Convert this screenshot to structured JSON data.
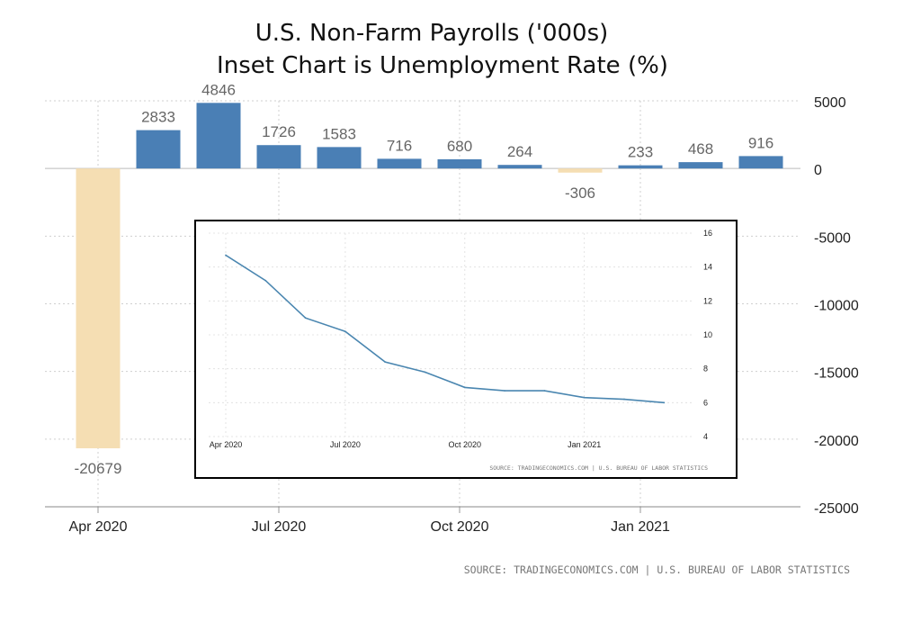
{
  "title": {
    "line1": "U.S. Non-Farm Payrolls ('000s)",
    "line2": "Inset Chart is Unemployment Rate (%)"
  },
  "source": "SOURCE: TRADINGECONOMICS.COM | U.S. BUREAU OF LABOR STATISTICS",
  "colors": {
    "positive": "#4a7fb5",
    "negative": "#f5deb3",
    "inset_line": "#4a86b0"
  },
  "chart_data": [
    {
      "type": "bar",
      "title": "U.S. Non-Farm Payrolls ('000s)",
      "values": [
        -20679,
        2833,
        4846,
        1726,
        1583,
        716,
        680,
        264,
        -306,
        233,
        468,
        916
      ],
      "labels": [
        "-20679",
        "2833",
        "4846",
        "1726",
        "1583",
        "716",
        "680",
        "264",
        "-306",
        "233",
        "468",
        "916"
      ],
      "x_tick_labels": [
        "Apr 2020",
        "Jul 2020",
        "Oct 2020",
        "Jan 2021"
      ],
      "x_tick_indices": [
        0,
        3,
        6,
        9
      ],
      "y_ticks": [
        5000,
        0,
        -5000,
        -10000,
        -15000,
        -20000,
        -25000
      ],
      "ylim": [
        -25000,
        5000
      ],
      "grid": true,
      "y_axis_position": "right"
    },
    {
      "type": "line",
      "title": "Unemployment Rate (%)",
      "values": [
        14.7,
        13.2,
        11.0,
        10.2,
        8.4,
        7.8,
        6.9,
        6.7,
        6.7,
        6.3,
        6.2,
        6.0
      ],
      "x_tick_labels": [
        "Apr 2020",
        "Jul 2020",
        "Oct 2020",
        "Jan 2021"
      ],
      "x_tick_indices": [
        0,
        3,
        6,
        9
      ],
      "y_ticks": [
        16,
        14,
        12,
        10,
        8,
        6,
        4
      ],
      "ylim": [
        4,
        16
      ],
      "y_axis_position": "right",
      "source": "SOURCE: TRADINGECONOMICS.COM | U.S. BUREAU OF LABOR STATISTICS"
    }
  ]
}
